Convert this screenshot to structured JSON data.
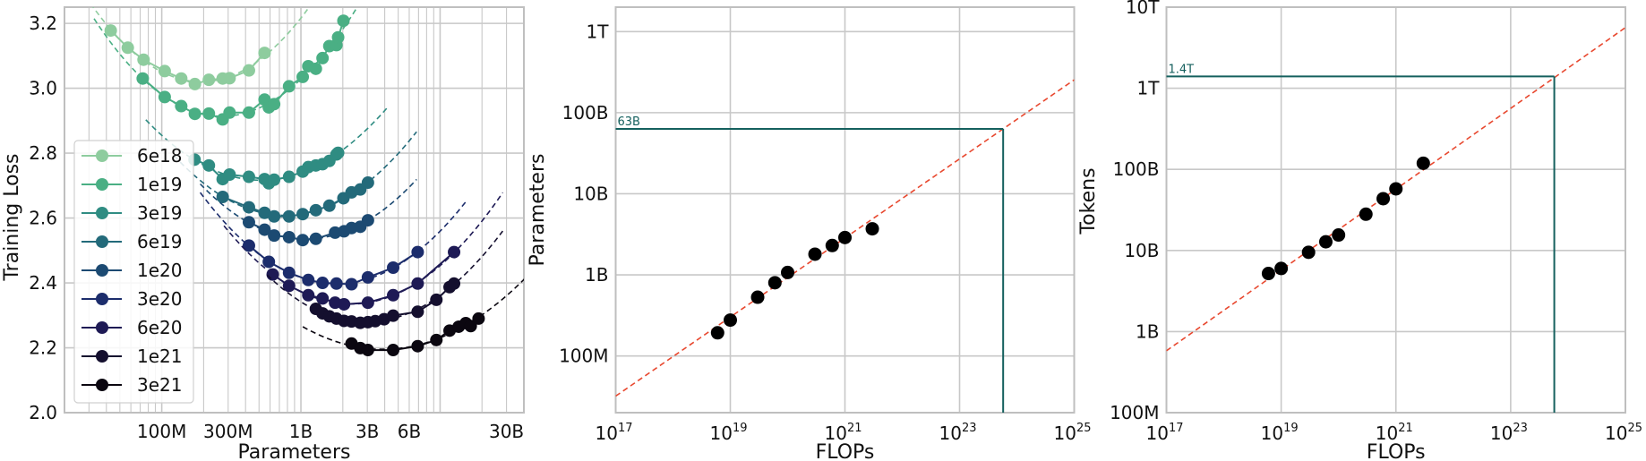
{
  "chart_data": [
    {
      "type": "line",
      "xlabel": "Parameters",
      "ylabel": "Training Loss",
      "xscale": "log",
      "xlim": [
        20000000.0,
        40000000000.0
      ],
      "ylim": [
        2.0,
        3.25
      ],
      "grid": true,
      "legend_placement": "center-left",
      "xticks": [
        {
          "value": 100000000.0,
          "label": "100M"
        },
        {
          "value": 300000000.0,
          "label": "300M"
        },
        {
          "value": 1000000000.0,
          "label": "1B"
        },
        {
          "value": 3000000000.0,
          "label": "3B"
        },
        {
          "value": 6000000000.0,
          "label": "6B"
        },
        {
          "value": 30000000000.0,
          "label": "30B"
        }
      ],
      "yticks": [
        {
          "value": 2.0,
          "label": "2.0"
        },
        {
          "value": 2.2,
          "label": "2.2"
        },
        {
          "value": 2.4,
          "label": "2.4"
        },
        {
          "value": 2.6,
          "label": "2.6"
        },
        {
          "value": 2.8,
          "label": "2.8"
        },
        {
          "value": 3.0,
          "label": "3.0"
        },
        {
          "value": 3.2,
          "label": "3.2"
        }
      ],
      "fit_style": "dashed parabola per series",
      "series": [
        {
          "name": "6e18",
          "color": "#8ecc9e",
          "points": [
            [
              43000000.0,
              3.178
            ],
            [
              57000000.0,
              3.125
            ],
            [
              74000000.0,
              3.088
            ],
            [
              105000000.0,
              3.053
            ],
            [
              138000000.0,
              3.03
            ],
            [
              173000000.0,
              3.013
            ],
            [
              218000000.0,
              3.026
            ],
            [
              274000000.0,
              3.03
            ],
            [
              307000000.0,
              3.031
            ],
            [
              423000000.0,
              3.055
            ],
            [
              548000000.0,
              3.109
            ]
          ]
        },
        {
          "name": "1e19",
          "color": "#4aaf84",
          "points": [
            [
              73000000.0,
              3.03
            ],
            [
              105000000.0,
              2.973
            ],
            [
              138000000.0,
              2.945
            ],
            [
              173000000.0,
              2.921
            ],
            [
              218000000.0,
              2.922
            ],
            [
              274000000.0,
              2.904
            ],
            [
              307000000.0,
              2.925
            ],
            [
              423000000.0,
              2.925
            ],
            [
              548000000.0,
              2.965
            ],
            [
              588000000.0,
              2.941
            ],
            [
              642000000.0,
              2.951
            ],
            [
              822000000.0,
              3.006
            ],
            [
              1030000000.0,
              3.035
            ],
            [
              1130000000.0,
              3.068
            ],
            [
              1280000000.0,
              3.06
            ],
            [
              1430000000.0,
              3.093
            ],
            [
              1600000000.0,
              3.13
            ],
            [
              1800000000.0,
              3.133
            ],
            [
              1850000000.0,
              3.157
            ],
            [
              2020000000.0,
              3.208
            ]
          ]
        },
        {
          "name": "3e19",
          "color": "#2f8c82",
          "points": [
            [
              172000000.0,
              2.78
            ],
            [
              218000000.0,
              2.762
            ],
            [
              274000000.0,
              2.72
            ],
            [
              307000000.0,
              2.734
            ],
            [
              423000000.0,
              2.727
            ],
            [
              548000000.0,
              2.72
            ],
            [
              588000000.0,
              2.707
            ],
            [
              642000000.0,
              2.718
            ],
            [
              822000000.0,
              2.727
            ],
            [
              1030000000.0,
              2.743
            ],
            [
              1130000000.0,
              2.757
            ],
            [
              1280000000.0,
              2.762
            ],
            [
              1430000000.0,
              2.766
            ],
            [
              1600000000.0,
              2.776
            ],
            [
              1800000000.0,
              2.796
            ],
            [
              1850000000.0,
              2.801
            ]
          ]
        },
        {
          "name": "6e19",
          "color": "#236a7a",
          "points": [
            [
              274000000.0,
              2.665
            ],
            [
              423000000.0,
              2.633
            ],
            [
              548000000.0,
              2.616
            ],
            [
              642000000.0,
              2.605
            ],
            [
              822000000.0,
              2.605
            ],
            [
              1030000000.0,
              2.612
            ],
            [
              1280000000.0,
              2.624
            ],
            [
              1600000000.0,
              2.638
            ],
            [
              2020000000.0,
              2.661
            ],
            [
              2310000000.0,
              2.679
            ],
            [
              2670000000.0,
              2.688
            ],
            [
              3030000000.0,
              2.709
            ]
          ]
        },
        {
          "name": "1e20",
          "color": "#1c4a72",
          "points": [
            [
              423000000.0,
              2.587
            ],
            [
              548000000.0,
              2.564
            ],
            [
              642000000.0,
              2.546
            ],
            [
              822000000.0,
              2.541
            ],
            [
              1030000000.0,
              2.532
            ],
            [
              1280000000.0,
              2.536
            ],
            [
              1760000000.0,
              2.555
            ],
            [
              2040000000.0,
              2.559
            ],
            [
              2310000000.0,
              2.569
            ],
            [
              2670000000.0,
              2.573
            ],
            [
              3030000000.0,
              2.593
            ]
          ]
        },
        {
          "name": "3e20",
          "color": "#1c2d6c",
          "points": [
            [
              423000000.0,
              2.515
            ],
            [
              588000000.0,
              2.465
            ],
            [
              822000000.0,
              2.431
            ],
            [
              1130000000.0,
              2.409
            ],
            [
              1430000000.0,
              2.4
            ],
            [
              1800000000.0,
              2.398
            ],
            [
              2310000000.0,
              2.396
            ],
            [
              3030000000.0,
              2.417
            ],
            [
              4600000000.0,
              2.447
            ],
            [
              6900000000.0,
              2.495
            ]
          ]
        },
        {
          "name": "6e20",
          "color": "#1e1a55",
          "points": [
            [
              627000000.0,
              2.426
            ],
            [
              822000000.0,
              2.391
            ],
            [
              1130000000.0,
              2.362
            ],
            [
              1430000000.0,
              2.352
            ],
            [
              1760000000.0,
              2.339
            ],
            [
              2040000000.0,
              2.334
            ],
            [
              3030000000.0,
              2.339
            ],
            [
              4600000000.0,
              2.362
            ],
            [
              6900000000.0,
              2.398
            ],
            [
              12600000000.0,
              2.495
            ]
          ]
        },
        {
          "name": "1e21",
          "color": "#140f2e",
          "points": [
            [
              1280000000.0,
              2.32
            ],
            [
              1430000000.0,
              2.306
            ],
            [
              1600000000.0,
              2.297
            ],
            [
              1800000000.0,
              2.29
            ],
            [
              2040000000.0,
              2.283
            ],
            [
              2310000000.0,
              2.281
            ],
            [
              2670000000.0,
              2.277
            ],
            [
              3030000000.0,
              2.279
            ],
            [
              3420000000.0,
              2.282
            ],
            [
              3960000000.0,
              2.288
            ],
            [
              4600000000.0,
              2.299
            ],
            [
              6900000000.0,
              2.311
            ],
            [
              9400000000.0,
              2.348
            ],
            [
              11700000000.0,
              2.387
            ],
            [
              12600000000.0,
              2.398
            ]
          ]
        },
        {
          "name": "3e21",
          "color": "#0b0710",
          "points": [
            [
              2310000000.0,
              2.213
            ],
            [
              2670000000.0,
              2.199
            ],
            [
              3030000000.0,
              2.193
            ],
            [
              4600000000.0,
              2.193
            ],
            [
              6900000000.0,
              2.205
            ],
            [
              9400000000.0,
              2.224
            ],
            [
              11700000000.0,
              2.253
            ],
            [
              13600000000.0,
              2.265
            ],
            [
              15300000000.0,
              2.276
            ],
            [
              16600000000.0,
              2.267
            ],
            [
              18900000000.0,
              2.29
            ]
          ]
        }
      ]
    },
    {
      "type": "scatter",
      "xlabel": "FLOPs",
      "ylabel": "Parameters",
      "xscale": "log",
      "yscale": "log",
      "xlim": [
        1e+17,
        1e+25
      ],
      "ylim": [
        20000000.0,
        2000000000000.0
      ],
      "grid": true,
      "xticks": [
        {
          "value": 1e+17,
          "base": "10",
          "exp": "17"
        },
        {
          "value": 1e+19,
          "base": "10",
          "exp": "19"
        },
        {
          "value": 1e+21,
          "base": "10",
          "exp": "21"
        },
        {
          "value": 1e+23,
          "base": "10",
          "exp": "23"
        },
        {
          "value": 1e+25,
          "base": "10",
          "exp": "25"
        }
      ],
      "yticks": [
        {
          "value": 100000000.0,
          "label": "100M"
        },
        {
          "value": 1000000000.0,
          "label": "1B"
        },
        {
          "value": 10000000000.0,
          "label": "10B"
        },
        {
          "value": 100000000000.0,
          "label": "100B"
        },
        {
          "value": 1000000000000.0,
          "label": "1T"
        }
      ],
      "points": [
        [
          6e+18,
          193000000.0
        ],
        [
          1e+19,
          277000000.0
        ],
        [
          3e+19,
          530000000.0
        ],
        [
          6e+19,
          800000000.0
        ],
        [
          1e+20,
          1070000000.0
        ],
        [
          3e+20,
          1800000000.0
        ],
        [
          6e+20,
          2300000000.0
        ],
        [
          1e+21,
          2890000000.0
        ],
        [
          3e+21,
          3700000000.0
        ]
      ],
      "point_color": "#000000",
      "fit_line": {
        "from": [
          1e+17,
          32000000.0
        ],
        "to": [
          1e+25,
          254000000000.0
        ],
        "color": "#e8482f",
        "style": "dashed"
      },
      "projection": {
        "flops": 5.76e+23,
        "value": 63000000000.0,
        "label": "63B",
        "color": "#15605e"
      }
    },
    {
      "type": "scatter",
      "xlabel": "FLOPs",
      "ylabel": "Tokens",
      "xscale": "log",
      "yscale": "log",
      "xlim": [
        1e+17,
        1e+25
      ],
      "ylim": [
        100000000.0,
        10000000000000.0
      ],
      "grid": true,
      "xticks": [
        {
          "value": 1e+17,
          "base": "10",
          "exp": "17"
        },
        {
          "value": 1e+19,
          "base": "10",
          "exp": "19"
        },
        {
          "value": 1e+21,
          "base": "10",
          "exp": "21"
        },
        {
          "value": 1e+23,
          "base": "10",
          "exp": "23"
        },
        {
          "value": 1e+25,
          "base": "10",
          "exp": "25"
        }
      ],
      "yticks": [
        {
          "value": 100000000.0,
          "label": "100M"
        },
        {
          "value": 1000000000.0,
          "label": "1B"
        },
        {
          "value": 10000000000.0,
          "label": "10B"
        },
        {
          "value": 100000000000.0,
          "label": "100B"
        },
        {
          "value": 1000000000000.0,
          "label": "1T"
        },
        {
          "value": 10000000000000.0,
          "label": "10T"
        }
      ],
      "points": [
        [
          6e+18,
          5200000000.0
        ],
        [
          1e+19,
          6000000000.0
        ],
        [
          3e+19,
          9500000000.0
        ],
        [
          6e+19,
          12800000000.0
        ],
        [
          1e+20,
          15500000000.0
        ],
        [
          3e+20,
          28000000000.0
        ],
        [
          6e+20,
          43500000000.0
        ],
        [
          1e+21,
          57500000000.0
        ],
        [
          3e+21,
          119000000000.0
        ]
      ],
      "point_color": "#000000",
      "fit_line": {
        "from": [
          1e+17,
          580000000.0
        ],
        "to": [
          1e+25,
          5600000000000.0
        ],
        "color": "#e8482f",
        "style": "dashed"
      },
      "projection": {
        "flops": 5.76e+23,
        "value": 1400000000000.0,
        "label": "1.4T",
        "color": "#15605e"
      }
    }
  ]
}
